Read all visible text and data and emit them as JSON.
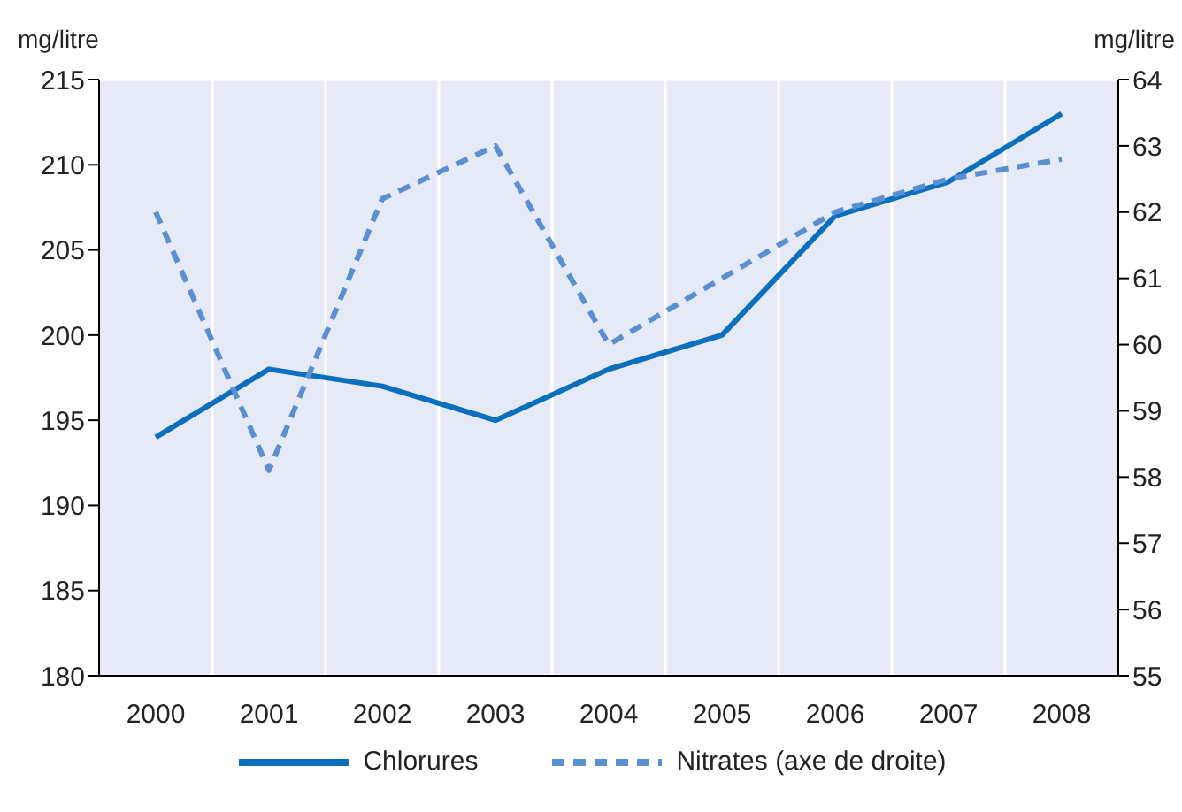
{
  "chart_data": {
    "type": "line",
    "ylabel": "mg/litre",
    "y2label": "mg/litre",
    "categories": [
      "2000",
      "2001",
      "2002",
      "2003",
      "2004",
      "2005",
      "2006",
      "2007",
      "2008"
    ],
    "series": [
      {
        "name": "Chlorures",
        "color": "#0b6fbe",
        "line_style": "solid",
        "values": [
          194,
          198,
          197,
          195,
          198,
          200,
          207,
          209,
          213
        ]
      },
      {
        "name": "Nitrates (axe de droite)",
        "color": "#5a8fd2",
        "line_style": "dashed",
        "axis": "y2",
        "values": [
          62.0,
          58.1,
          62.2,
          63.0,
          60.0,
          61.0,
          62.0,
          62.5,
          62.8
        ]
      }
    ],
    "ylim": [
      180,
      215
    ],
    "yticks": [
      180,
      185,
      190,
      195,
      200,
      205,
      210,
      215
    ],
    "y2lim": [
      55,
      64
    ],
    "y2ticks": [
      55,
      56,
      57,
      58,
      59,
      60,
      61,
      62,
      63,
      64
    ],
    "grid": true,
    "legend": "bottom",
    "marker": "none"
  }
}
